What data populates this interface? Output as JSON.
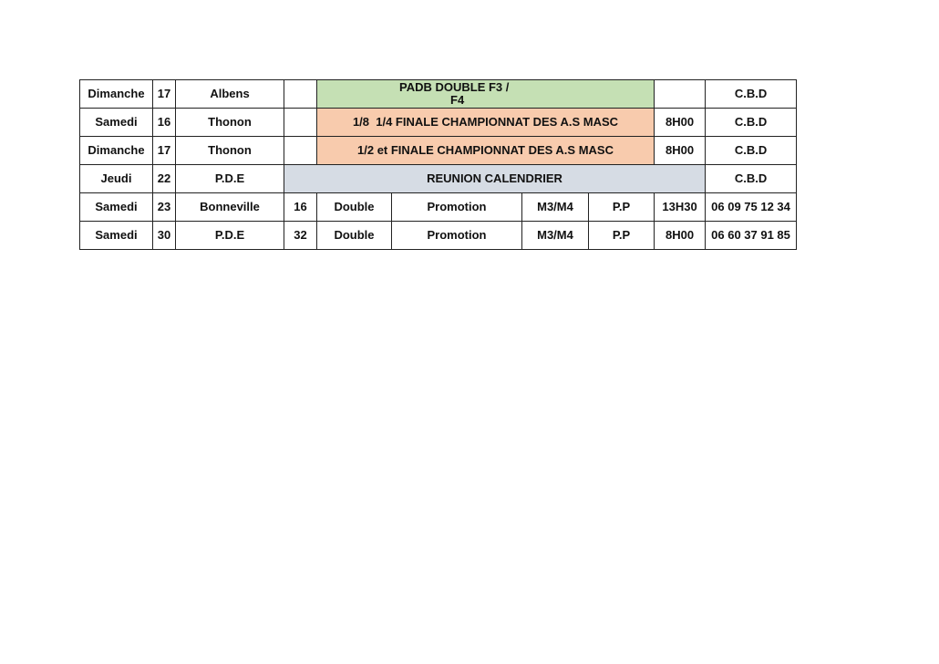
{
  "colors": {
    "green": "#c5e0b4",
    "orange": "#f8cbad",
    "gray": "#d6dce4"
  },
  "rows": [
    {
      "day": "Dimanche",
      "date": "17",
      "place": "Albens",
      "event_line1": "PADB DOUBLE F3 /",
      "event_line2": "F4",
      "time": "",
      "contact": "C.B.D"
    },
    {
      "day": "Samedi",
      "date": "16",
      "place": "Thonon",
      "event": "1/8  1/4 FINALE CHAMPIONNAT DES A.S MASC",
      "time": "8H00",
      "contact": "C.B.D"
    },
    {
      "day": "Dimanche",
      "date": "17",
      "place": "Thonon",
      "event": "1/2 et FINALE CHAMPIONNAT DES A.S MASC",
      "time": "8H00",
      "contact": "C.B.D"
    },
    {
      "day": "Jeudi",
      "date": "22",
      "place": "P.D.E",
      "event": "REUNION CALENDRIER",
      "contact": "C.B.D"
    },
    {
      "day": "Samedi",
      "date": "23",
      "place": "Bonneville",
      "teams": "16",
      "format": "Double",
      "level": "Promotion",
      "category": "M3/M4",
      "mode": "P.P",
      "time": "13H30",
      "contact": "06 09 75 12 34"
    },
    {
      "day": "Samedi",
      "date": "30",
      "place": "P.D.E",
      "teams": "32",
      "format": "Double",
      "level": "Promotion",
      "category": "M3/M4",
      "mode": "P.P",
      "time": "8H00",
      "contact": "06 60 37 91 85"
    }
  ]
}
